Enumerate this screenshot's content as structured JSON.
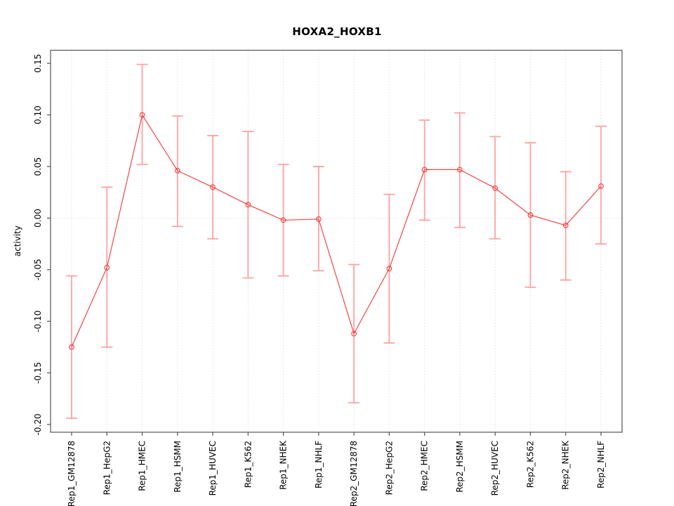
{
  "title": "HOXA2_HOXB1",
  "chart_data": {
    "type": "line",
    "title": "HOXA2_HOXB1",
    "xlabel": "",
    "ylabel": "activity",
    "legend_position": "none",
    "marker": "open-circle",
    "error_bars": true,
    "grid": {
      "vertical_dotted": true,
      "zero_line_dotted": true
    },
    "ylim": [
      -0.2075,
      0.1627
    ],
    "yticks": [
      0.15,
      0.1,
      0.05,
      0.0,
      -0.05,
      -0.1,
      -0.15,
      -0.2
    ],
    "ytick_labels": [
      "0.15",
      "0.10",
      "0.05",
      "0.00",
      "-0.05",
      "-0.10",
      "-0.15",
      "-0.20"
    ],
    "categories": [
      "Rep1_GM12878",
      "Rep1_HepG2",
      "Rep1_HMEC",
      "Rep1_HSMM",
      "Rep1_HUVEC",
      "Rep1_K562",
      "Rep1_NHEK",
      "Rep1_NHLF",
      "Rep2_GM12878",
      "Rep2_HepG2",
      "Rep2_HMEC",
      "Rep2_HSMM",
      "Rep2_HUVEC",
      "Rep2_K562",
      "Rep2_NHEK",
      "Rep2_NHLF"
    ],
    "series": [
      {
        "name": "activity",
        "values": [
          -0.125,
          -0.048,
          0.1,
          0.046,
          0.03,
          0.013,
          -0.002,
          -0.001,
          -0.112,
          -0.049,
          0.047,
          0.047,
          0.029,
          0.003,
          -0.007,
          0.031
        ],
        "lower": [
          -0.194,
          -0.125,
          0.052,
          -0.008,
          -0.02,
          -0.058,
          -0.056,
          -0.051,
          -0.179,
          -0.121,
          -0.002,
          -0.009,
          -0.02,
          -0.067,
          -0.06,
          -0.025
        ],
        "upper": [
          -0.056,
          0.03,
          0.149,
          0.099,
          0.08,
          0.084,
          0.052,
          0.05,
          -0.045,
          0.023,
          0.095,
          0.102,
          0.079,
          0.073,
          0.045,
          0.089
        ]
      }
    ],
    "colors": {
      "line": "#f64545",
      "point": "#f64545",
      "error_bar": "#ffa2a2",
      "grid": "#dedede",
      "axis_box": "#545454",
      "text": "#000000",
      "background": "#ffffff"
    }
  }
}
